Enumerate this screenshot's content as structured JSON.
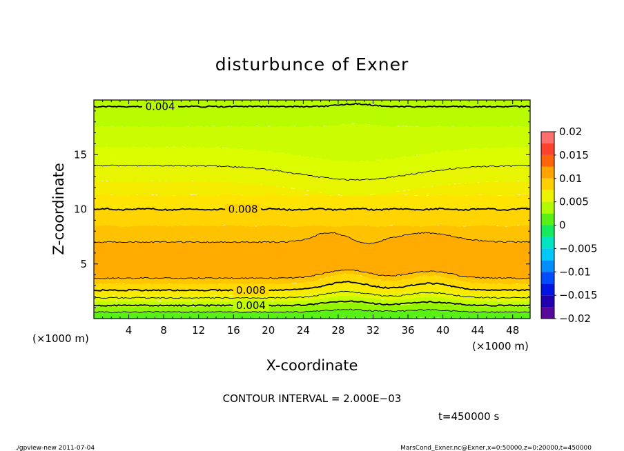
{
  "chart_data": {
    "type": "heatmap",
    "title": "disturbunce of Exner",
    "xlabel": "X-coordinate",
    "ylabel": "Z-coordinate",
    "x_unit_left": "(×1000 m)",
    "x_unit_right": "(×1000 m)",
    "xlim": [
      0,
      50
    ],
    "ylim": [
      0,
      20
    ],
    "x_ticks": [
      4,
      8,
      12,
      16,
      20,
      24,
      28,
      32,
      36,
      40,
      44,
      48
    ],
    "y_ticks": [
      5,
      10,
      15
    ],
    "colorbar": {
      "ticks": [
        "0.02",
        "0.015",
        "0.01",
        "0.005",
        "0",
        "−0.005",
        "−0.01",
        "−0.015",
        "−0.02"
      ],
      "range": [
        -0.02,
        0.02
      ],
      "step": 0.0025
    },
    "bands": [
      {
        "z": [
          0.0,
          0.6
        ],
        "value": 0.0012
      },
      {
        "z": [
          0.6,
          1.1
        ],
        "value": 0.0027
      },
      {
        "z": [
          1.1,
          1.6
        ],
        "value": 0.0043
      },
      {
        "z": [
          1.6,
          2.1
        ],
        "value": 0.0058
      },
      {
        "z": [
          2.1,
          2.7
        ],
        "value": 0.0072
      },
      {
        "z": [
          2.7,
          3.2
        ],
        "value": 0.0082
      },
      {
        "z": [
          3.2,
          3.7
        ],
        "value": 0.0093
      },
      {
        "z": [
          3.7,
          7.0
        ],
        "value": 0.0108
      },
      {
        "z": [
          7.0,
          8.5
        ],
        "value": 0.0095
      },
      {
        "z": [
          8.5,
          10.0
        ],
        "value": 0.0085
      },
      {
        "z": [
          10.0,
          11.3
        ],
        "value": 0.0076
      },
      {
        "z": [
          11.3,
          12.6
        ],
        "value": 0.0068
      },
      {
        "z": [
          12.6,
          14.0
        ],
        "value": 0.006
      },
      {
        "z": [
          14.0,
          15.7
        ],
        "value": 0.0053
      },
      {
        "z": [
          15.7,
          17.6
        ],
        "value": 0.0046
      },
      {
        "z": [
          17.6,
          20.0
        ],
        "value": 0.004
      }
    ],
    "contours": [
      {
        "value": 0.004,
        "z": 19.4,
        "bold": true
      },
      {
        "value": 0.006,
        "z": 14.0,
        "bold": false
      },
      {
        "value": 0.008,
        "z": 10.0,
        "bold": true
      },
      {
        "value": 0.01,
        "z": 7.0,
        "bold": false
      },
      {
        "value": 0.01,
        "z": 3.7,
        "bold": false
      },
      {
        "value": 0.008,
        "z": 2.6,
        "bold": true
      },
      {
        "value": 0.006,
        "z": 1.9,
        "bold": false
      },
      {
        "value": 0.004,
        "z": 1.2,
        "bold": true
      },
      {
        "value": 0.002,
        "z": 0.6,
        "bold": false
      }
    ],
    "contour_labels": [
      {
        "text": "0.004",
        "x": 7.6,
        "z": 19.4
      },
      {
        "text": "0.008",
        "x": 17.1,
        "z": 10.0
      },
      {
        "text": "0.008",
        "x": 18.0,
        "z": 2.6
      },
      {
        "text": "0.004",
        "x": 18.0,
        "z": 1.2
      }
    ]
  },
  "footer": {
    "contour_interval": "CONTOUR INTERVAL = 2.000E−03",
    "time": "t=450000 s",
    "program": "./gpview-new  2011-07-04",
    "source": "MarsCond_Exner.nc@Exner,x=0:50000,z=0:20000,t=450000"
  }
}
